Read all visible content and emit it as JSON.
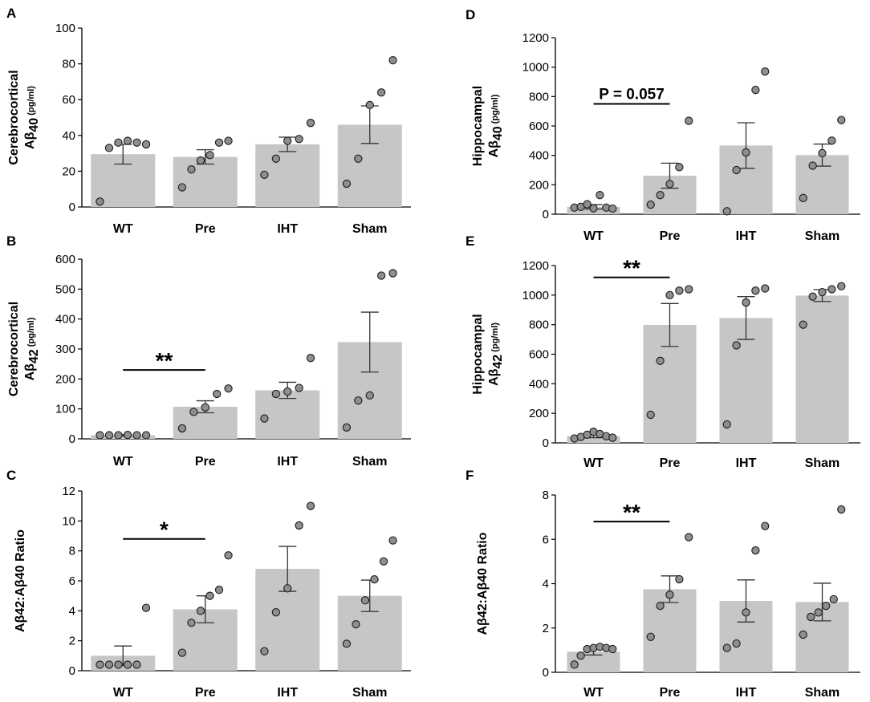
{
  "chart_data": [
    {
      "panel": "A",
      "type": "bar",
      "title": "",
      "ylabel": {
        "line1": "Cerebrocortical",
        "main": "Aβ",
        "sub": "40",
        "unit": " (pg/ml)"
      },
      "categories": [
        "WT",
        "Pre",
        "IHT",
        "Sham"
      ],
      "values": [
        29.5,
        28,
        35,
        46
      ],
      "errors": [
        5.5,
        4,
        4,
        10.5
      ],
      "points": [
        [
          3,
          33,
          36,
          37,
          36,
          35
        ],
        [
          11,
          21,
          26,
          29,
          36,
          37
        ],
        [
          18,
          27,
          37,
          38,
          47
        ],
        [
          13,
          27,
          57,
          64,
          82
        ]
      ],
      "ylim": [
        0,
        100
      ],
      "yticks": [
        "0",
        "20",
        "40",
        "60",
        "80",
        "100"
      ],
      "significance": []
    },
    {
      "panel": "B",
      "type": "bar",
      "title": "",
      "ylabel": {
        "line1": "Cerebrocortical",
        "main": "Aβ",
        "sub": "42",
        "unit": " (pg/ml)"
      },
      "categories": [
        "WT",
        "Pre",
        "IHT",
        "Sham"
      ],
      "values": [
        12,
        107,
        162,
        323
      ],
      "errors": [
        2,
        20,
        27,
        100
      ],
      "points": [
        [
          12,
          12,
          12,
          13,
          12,
          12
        ],
        [
          35,
          90,
          105,
          150,
          168
        ],
        [
          68,
          150,
          158,
          170,
          270
        ],
        [
          38,
          128,
          145,
          545,
          553
        ]
      ],
      "ylim": [
        0,
        600
      ],
      "yticks": [
        "0",
        "100",
        "200",
        "300",
        "400",
        "500",
        "600"
      ],
      "significance": [
        {
          "from": 0,
          "to": 1,
          "y": 230,
          "label": "**"
        }
      ]
    },
    {
      "panel": "C",
      "type": "bar",
      "title": "",
      "ylabel": {
        "line1": "",
        "main": "Aβ42:Aβ40",
        "sub": "",
        "unit": " Ratio"
      },
      "categories": [
        "WT",
        "Pre",
        "IHT",
        "Sham"
      ],
      "values": [
        1.0,
        4.1,
        6.8,
        5.0
      ],
      "errors": [
        0.65,
        0.9,
        1.5,
        1.05
      ],
      "points": [
        [
          0.4,
          0.4,
          0.4,
          0.4,
          0.4,
          4.2
        ],
        [
          1.2,
          3.2,
          4.0,
          5.0,
          5.4,
          7.7
        ],
        [
          1.3,
          3.9,
          5.5,
          9.7,
          11.0
        ],
        [
          1.8,
          3.1,
          4.7,
          6.1,
          7.3,
          8.7
        ]
      ],
      "ylim": [
        0,
        12
      ],
      "yticks": [
        "0",
        "2",
        "4",
        "6",
        "8",
        "10",
        "12"
      ],
      "significance": [
        {
          "from": 0,
          "to": 1,
          "y": 8.8,
          "label": "*"
        }
      ]
    },
    {
      "panel": "D",
      "type": "bar",
      "title": "",
      "ylabel": {
        "line1": "Hippocampal",
        "main": "Aβ",
        "sub": "40",
        "unit": " (pg/ml)"
      },
      "categories": [
        "WT",
        "Pre",
        "IHT",
        "Sham"
      ],
      "values": [
        50,
        262,
        467,
        402
      ],
      "errors": [
        15,
        85,
        155,
        75
      ],
      "points": [
        [
          45,
          50,
          68,
          40,
          130,
          45,
          38
        ],
        [
          65,
          130,
          205,
          320,
          635
        ],
        [
          20,
          300,
          420,
          845,
          970
        ],
        [
          110,
          330,
          415,
          500,
          640
        ]
      ],
      "ylim": [
        0,
        1200
      ],
      "yticks": [
        "0",
        "200",
        "400",
        "600",
        "800",
        "1000",
        "1200"
      ],
      "significance": [
        {
          "from": 0,
          "to": 1,
          "y": 750,
          "label": "P = 0.057"
        }
      ]
    },
    {
      "panel": "E",
      "type": "bar",
      "title": "",
      "ylabel": {
        "line1": "Hippocampal",
        "main": "Aβ",
        "sub": "42",
        "unit": " (pg/ml)"
      },
      "categories": [
        "WT",
        "Pre",
        "IHT",
        "Sham"
      ],
      "values": [
        45,
        798,
        845,
        997
      ],
      "errors": [
        10,
        145,
        145,
        40
      ],
      "points": [
        [
          30,
          40,
          55,
          75,
          60,
          45,
          35
        ],
        [
          190,
          555,
          1000,
          1030,
          1040
        ],
        [
          125,
          660,
          950,
          1030,
          1045
        ],
        [
          800,
          990,
          1020,
          1040,
          1060
        ]
      ],
      "ylim": [
        0,
        1200
      ],
      "yticks": [
        "0",
        "200",
        "400",
        "600",
        "800",
        "1000",
        "1200"
      ],
      "significance": [
        {
          "from": 0,
          "to": 1,
          "y": 1120,
          "label": "**"
        }
      ]
    },
    {
      "panel": "F",
      "type": "bar",
      "title": "",
      "ylabel": {
        "line1": "",
        "main": "Aβ42:Aβ40",
        "sub": "",
        "unit": " Ratio"
      },
      "categories": [
        "WT",
        "Pre",
        "IHT",
        "Sham"
      ],
      "values": [
        0.93,
        3.75,
        3.22,
        3.17
      ],
      "errors": [
        0.15,
        0.6,
        0.95,
        0.85
      ],
      "points": [
        [
          0.35,
          0.75,
          1.05,
          1.1,
          1.15,
          1.1,
          1.05
        ],
        [
          1.6,
          3.0,
          3.5,
          4.2,
          6.1
        ],
        [
          1.1,
          1.3,
          2.7,
          5.5,
          6.6
        ],
        [
          1.7,
          2.5,
          2.7,
          3.0,
          3.3,
          7.35
        ]
      ],
      "ylim": [
        0,
        8
      ],
      "yticks": [
        "0",
        "2",
        "4",
        "6",
        "8"
      ],
      "significance": [
        {
          "from": 0,
          "to": 1,
          "y": 6.8,
          "label": "**"
        }
      ]
    }
  ],
  "colors": {
    "bar": "#c6c6c6",
    "point": "#8f8f8f",
    "point_stroke": "#1a1a1a",
    "axis": "#000000"
  }
}
